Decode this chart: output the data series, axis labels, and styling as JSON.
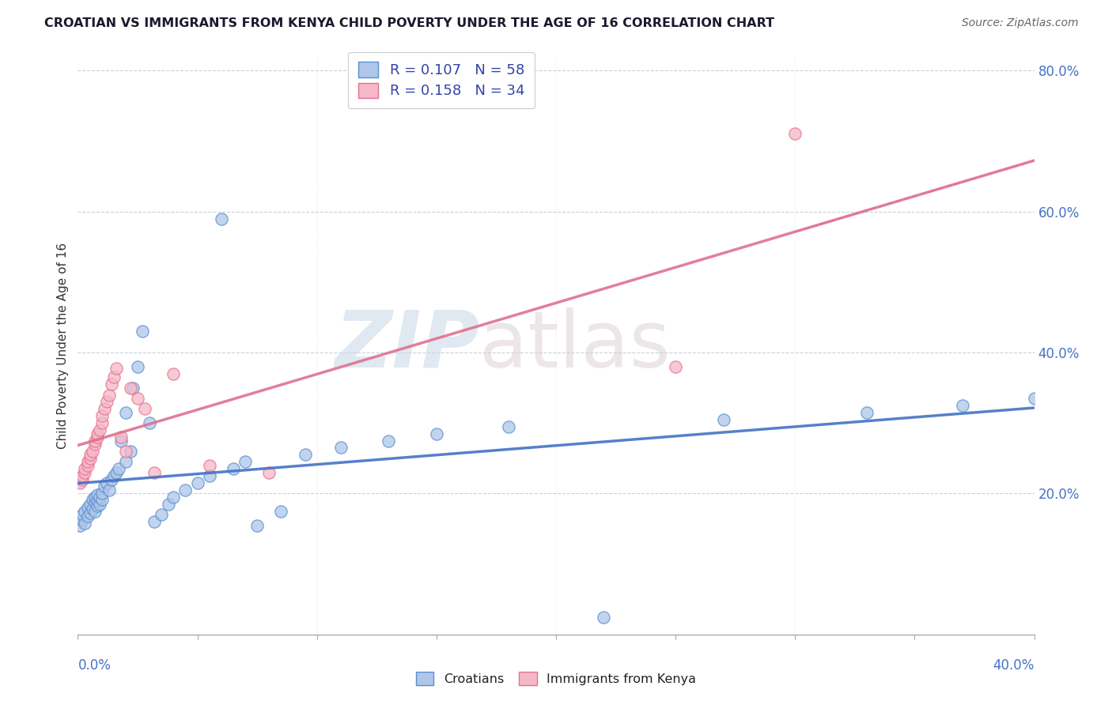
{
  "title": "CROATIAN VS IMMIGRANTS FROM KENYA CHILD POVERTY UNDER THE AGE OF 16 CORRELATION CHART",
  "source": "Source: ZipAtlas.com",
  "ylabel": "Child Poverty Under the Age of 16",
  "croatians_R": "0.107",
  "croatians_N": "58",
  "kenya_R": "0.158",
  "kenya_N": "34",
  "croatian_fill_color": "#aec6e8",
  "kenya_fill_color": "#f4b8c8",
  "croatian_edge_color": "#5b8fd4",
  "kenya_edge_color": "#e87090",
  "croatian_line_color": "#4472c4",
  "kenya_line_color": "#e07090",
  "watermark_zip": "ZIP",
  "watermark_atlas": "atlas",
  "xlim": [
    0.0,
    0.4
  ],
  "ylim": [
    0.0,
    0.82
  ],
  "yticks": [
    0.0,
    0.2,
    0.4,
    0.6,
    0.8
  ],
  "ytick_labels": [
    "",
    "20.0%",
    "40.0%",
    "60.0%",
    "80.0%"
  ],
  "cr_x": [
    0.001,
    0.002,
    0.002,
    0.003,
    0.003,
    0.004,
    0.004,
    0.005,
    0.005,
    0.006,
    0.006,
    0.007,
    0.007,
    0.007,
    0.008,
    0.008,
    0.008,
    0.009,
    0.009,
    0.01,
    0.01,
    0.011,
    0.012,
    0.013,
    0.014,
    0.015,
    0.016,
    0.017,
    0.018,
    0.02,
    0.02,
    0.022,
    0.023,
    0.025,
    0.027,
    0.03,
    0.032,
    0.035,
    0.038,
    0.04,
    0.045,
    0.05,
    0.055,
    0.06,
    0.065,
    0.07,
    0.075,
    0.085,
    0.095,
    0.11,
    0.13,
    0.15,
    0.18,
    0.22,
    0.27,
    0.33,
    0.37,
    0.4
  ],
  "cr_y": [
    0.155,
    0.162,
    0.17,
    0.158,
    0.175,
    0.168,
    0.18,
    0.172,
    0.185,
    0.178,
    0.192,
    0.175,
    0.188,
    0.195,
    0.182,
    0.19,
    0.198,
    0.185,
    0.195,
    0.192,
    0.2,
    0.21,
    0.215,
    0.205,
    0.22,
    0.225,
    0.23,
    0.235,
    0.275,
    0.245,
    0.315,
    0.26,
    0.35,
    0.38,
    0.43,
    0.3,
    0.16,
    0.17,
    0.185,
    0.195,
    0.205,
    0.215,
    0.225,
    0.59,
    0.235,
    0.245,
    0.155,
    0.175,
    0.255,
    0.265,
    0.275,
    0.285,
    0.295,
    0.025,
    0.305,
    0.315,
    0.325,
    0.335
  ],
  "ke_x": [
    0.001,
    0.002,
    0.002,
    0.003,
    0.003,
    0.004,
    0.004,
    0.005,
    0.005,
    0.006,
    0.007,
    0.007,
    0.008,
    0.008,
    0.009,
    0.01,
    0.01,
    0.011,
    0.012,
    0.013,
    0.014,
    0.015,
    0.016,
    0.018,
    0.02,
    0.022,
    0.025,
    0.028,
    0.032,
    0.04,
    0.055,
    0.08,
    0.25,
    0.3
  ],
  "ke_y": [
    0.215,
    0.22,
    0.225,
    0.23,
    0.235,
    0.24,
    0.245,
    0.25,
    0.255,
    0.26,
    0.27,
    0.275,
    0.28,
    0.285,
    0.29,
    0.3,
    0.31,
    0.32,
    0.33,
    0.34,
    0.355,
    0.365,
    0.378,
    0.28,
    0.26,
    0.35,
    0.335,
    0.32,
    0.23,
    0.37,
    0.24,
    0.23,
    0.38,
    0.71
  ]
}
